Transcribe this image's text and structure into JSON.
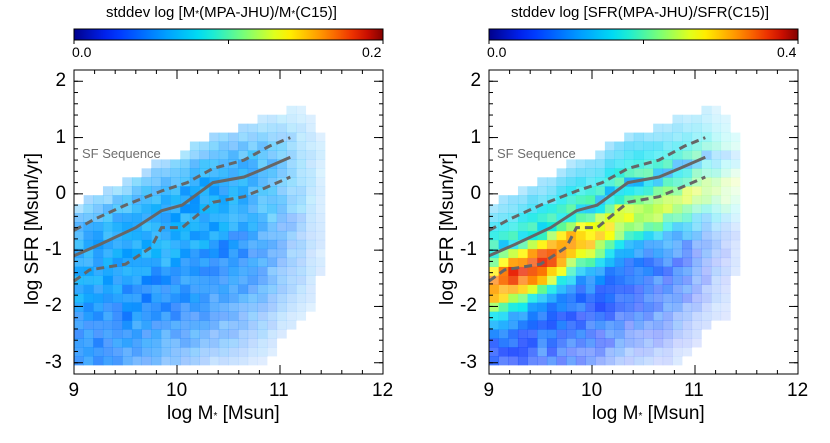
{
  "chart_data": [
    {
      "type": "heatmap",
      "colorbar": {
        "title": "stddev log [M*(MPA-JHU)/M*(C15)]",
        "title_parts": [
          "stddev log [M",
          "*",
          "(MPA-JHU)/M",
          "*",
          "(C15)]"
        ],
        "range": [
          0.0,
          0.2
        ],
        "tick_labels": [
          "0.0",
          "0.2"
        ],
        "colormap": "rainbow (blue-cyan-green-yellow-red)"
      },
      "xlabel": "log M* [Msun]",
      "xlabel_parts": [
        "log M",
        "*",
        " [Msun]"
      ],
      "ylabel": "log SFR [Msun/yr]",
      "xlim": [
        9,
        12
      ],
      "ylim": [
        -3.2,
        2.2
      ],
      "x_ticks": [
        "9",
        "10",
        "11",
        "12"
      ],
      "y_ticks": [
        "-3",
        "-2",
        "-1",
        "0",
        "1",
        "2"
      ],
      "annotation": "SF Sequence",
      "typical_value": 0.06,
      "series": [
        {
          "name": "",
          "style": "solid",
          "x": [
            9.0,
            9.25,
            9.6,
            9.85,
            10.05,
            10.35,
            10.65,
            10.85,
            11.1
          ],
          "y": [
            -1.1,
            -0.9,
            -0.6,
            -0.3,
            -0.2,
            0.2,
            0.3,
            0.45,
            0.65
          ]
        },
        {
          "name": "",
          "style": "dashed",
          "x": [
            9.0,
            9.2,
            9.5,
            9.85,
            10.1,
            10.35,
            10.65,
            10.9,
            11.1
          ],
          "y": [
            -0.65,
            -0.45,
            -0.2,
            0.05,
            0.2,
            0.45,
            0.6,
            0.85,
            1.0
          ]
        },
        {
          "name": "",
          "style": "dashed",
          "x": [
            9.0,
            9.15,
            9.5,
            9.75,
            9.85,
            10.05,
            10.35,
            10.65,
            10.85,
            11.1
          ],
          "y": [
            -1.55,
            -1.35,
            -1.25,
            -0.95,
            -0.6,
            -0.6,
            -0.15,
            -0.05,
            0.1,
            0.3
          ]
        }
      ]
    },
    {
      "type": "heatmap",
      "colorbar": {
        "title": "stddev log [SFR(MPA-JHU)/SFR(C15)]",
        "title_parts": [
          "stddev log [SFR(MPA-JHU)/SFR(C15)]",
          "",
          "",
          "",
          ""
        ],
        "range": [
          0.0,
          0.4
        ],
        "tick_labels": [
          "0.0",
          "0.4"
        ],
        "colormap": "rainbow (blue-cyan-green-yellow-red)"
      },
      "xlabel": "log M* [Msun]",
      "xlabel_parts": [
        "log M",
        "*",
        " [Msun]"
      ],
      "ylabel": "log SFR [Msun/yr]",
      "xlim": [
        9,
        12
      ],
      "ylim": [
        -3.2,
        2.2
      ],
      "x_ticks": [
        "9",
        "10",
        "11",
        "12"
      ],
      "y_ticks": [
        "-3",
        "-2",
        "-1",
        "0",
        "1",
        "2"
      ],
      "annotation": "SF Sequence",
      "typical_value": 0.25,
      "series": [
        {
          "name": "",
          "style": "solid",
          "x": [
            9.0,
            9.25,
            9.6,
            9.85,
            10.05,
            10.35,
            10.65,
            10.85,
            11.1
          ],
          "y": [
            -1.1,
            -0.9,
            -0.6,
            -0.3,
            -0.2,
            0.2,
            0.3,
            0.45,
            0.65
          ]
        },
        {
          "name": "",
          "style": "dashed",
          "x": [
            9.0,
            9.2,
            9.5,
            9.85,
            10.1,
            10.35,
            10.65,
            10.9,
            11.1
          ],
          "y": [
            -0.65,
            -0.45,
            -0.2,
            0.05,
            0.2,
            0.45,
            0.6,
            0.85,
            1.0
          ]
        },
        {
          "name": "",
          "style": "dashed",
          "x": [
            9.0,
            9.15,
            9.5,
            9.75,
            9.85,
            10.05,
            10.35,
            10.65,
            10.85,
            11.1
          ],
          "y": [
            -1.55,
            -1.35,
            -1.25,
            -0.95,
            -0.6,
            -0.6,
            -0.15,
            -0.05,
            0.1,
            0.3
          ]
        }
      ]
    }
  ]
}
